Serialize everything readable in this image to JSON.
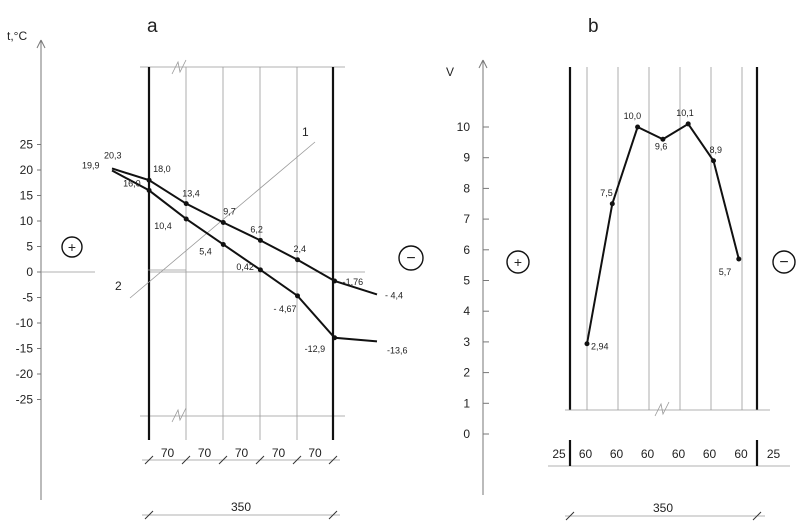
{
  "panels": {
    "a": "a",
    "b": "b"
  },
  "signs": {
    "plus": "+",
    "minus": "−"
  },
  "chart_data": [
    {
      "type": "line",
      "panel": "a",
      "ylabel": "t,°C",
      "yticks": [
        25,
        20,
        15,
        10,
        5,
        0,
        -5,
        -10,
        -15,
        -20,
        -25
      ],
      "ylim": [
        -25,
        25
      ],
      "dims": [
        "70",
        "70",
        "70",
        "70",
        "70"
      ],
      "total_dim": "350",
      "line_labels": [
        "1",
        "2"
      ],
      "series": [
        {
          "points": [
            [
              0,
              20.3
            ],
            [
              70,
              18.0
            ],
            [
              140,
              13.4
            ],
            [
              210,
              9.7
            ],
            [
              280,
              6.2
            ],
            [
              350,
              2.4
            ],
            [
              420,
              -1.76
            ],
            [
              500,
              -4.4
            ]
          ],
          "labels": [
            "20,3",
            "18,0",
            "13,4",
            "9,7",
            "6,2",
            "2,4",
            "-1,76",
            "- 4,4"
          ]
        },
        {
          "points": [
            [
              0,
              19.9
            ],
            [
              70,
              16.0
            ],
            [
              140,
              10.4
            ],
            [
              210,
              5.4
            ],
            [
              280,
              0.42
            ],
            [
              350,
              -4.67
            ],
            [
              420,
              -12.9
            ],
            [
              500,
              -13.6
            ]
          ],
          "labels": [
            "19,9",
            "16,0",
            "10,4",
            "5,4",
            "0,42",
            "- 4,67",
            "-12,9",
            "-13,6"
          ]
        }
      ]
    },
    {
      "type": "line",
      "panel": "b",
      "ylabel": "V",
      "yticks": [
        10,
        9,
        8,
        7,
        6,
        5,
        4,
        3,
        2,
        1,
        0
      ],
      "ylim": [
        0,
        10
      ],
      "dims": [
        "25",
        "60",
        "60",
        "60",
        "60",
        "60",
        "60",
        "25"
      ],
      "total_dim": "350",
      "series": [
        {
          "points": [
            [
              0,
              2.94
            ],
            [
              1,
              7.5
            ],
            [
              2,
              10.0
            ],
            [
              3,
              9.6
            ],
            [
              4,
              10.1
            ],
            [
              5,
              8.9
            ],
            [
              6,
              5.7
            ]
          ],
          "labels": [
            "2,94",
            "7,5",
            "10,0",
            "9,6",
            "10,1",
            "8,9",
            "5,7"
          ]
        }
      ]
    }
  ]
}
